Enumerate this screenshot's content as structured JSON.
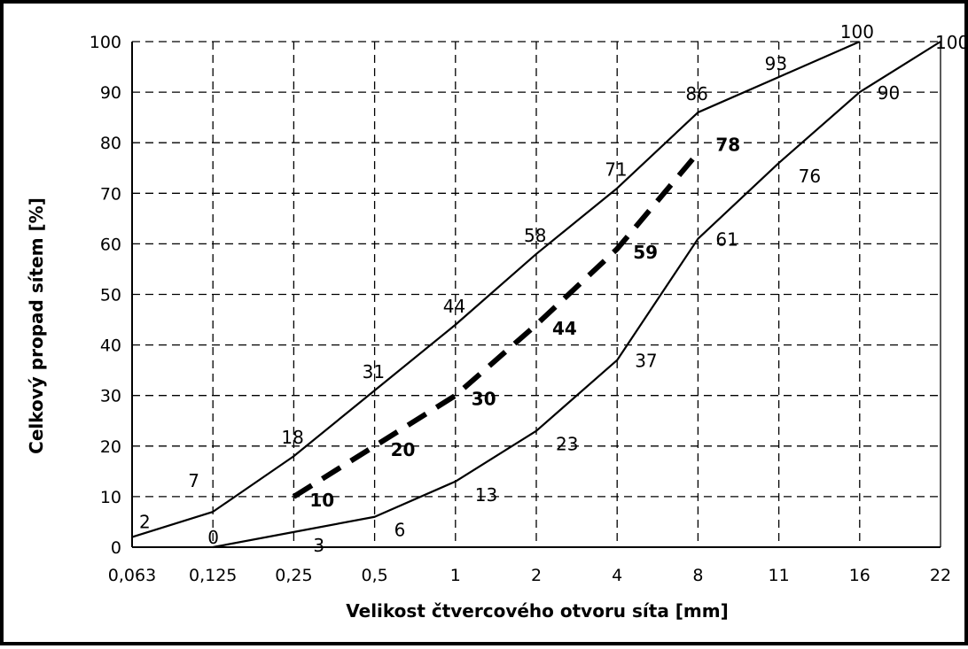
{
  "chart_data": {
    "type": "line",
    "xlabel": "Velikost čtvercového otvoru síta [mm]",
    "ylabel": "Celkový propad sítem [%]",
    "x_tick_labels": [
      "0,063",
      "0,125",
      "0,25",
      "0,5",
      "1",
      "2",
      "4",
      "8",
      "11",
      "16",
      "22"
    ],
    "y_tick_labels": [
      "0",
      "10",
      "20",
      "30",
      "40",
      "50",
      "60",
      "70",
      "80",
      "90",
      "100"
    ],
    "ylim": [
      0,
      100
    ],
    "x_scale": "categorical",
    "grid": "dashed",
    "legend": "none",
    "series": [
      {
        "style": "solid",
        "x": [
          "0,063",
          "0,125",
          "0,25",
          "0,5",
          "1",
          "2",
          "4",
          "8",
          "11",
          "16"
        ],
        "values": [
          2,
          7,
          18,
          31,
          44,
          58,
          71,
          86,
          93,
          100
        ],
        "labels": [
          "2",
          "7",
          "18",
          "31",
          "44",
          "58",
          "71",
          "86",
          "93",
          "100"
        ]
      },
      {
        "style": "solid",
        "x": [
          "0,125",
          "0,25",
          "0,5",
          "1",
          "2",
          "4",
          "8",
          "11",
          "16",
          "22"
        ],
        "values": [
          0,
          3,
          6,
          13,
          23,
          37,
          61,
          76,
          90,
          100
        ],
        "labels": [
          "0",
          "3",
          "6",
          "13",
          "23",
          "37",
          "61",
          "76",
          "90",
          "100"
        ]
      },
      {
        "style": "dashed-bold",
        "x": [
          "0,25",
          "0,5",
          "1",
          "2",
          "4",
          "8"
        ],
        "values": [
          10,
          20,
          30,
          44,
          59,
          78
        ],
        "labels": [
          "10",
          "20",
          "30",
          "44",
          "59",
          "78"
        ]
      }
    ],
    "colors": {
      "line": "#000000",
      "grid": "#000000",
      "background": "#ffffff"
    }
  }
}
